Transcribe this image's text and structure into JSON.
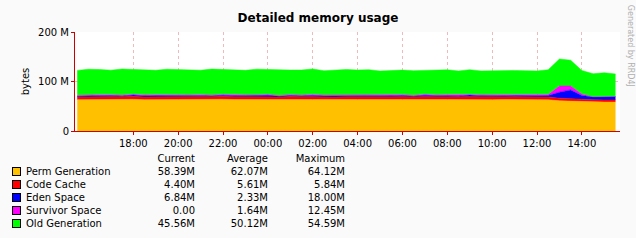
{
  "chart_data": {
    "type": "area",
    "title": "Detailed memory usage",
    "y_label": "bytes",
    "annotations": [
      "Generated by RRD4J"
    ],
    "stacked": true,
    "grid": true,
    "x": [
      15.5,
      16,
      16.5,
      17,
      17.5,
      18,
      18.5,
      19,
      19.5,
      20,
      20.5,
      21,
      21.5,
      22,
      22.5,
      23,
      23.5,
      24,
      24.5,
      25,
      25.5,
      26,
      26.5,
      27,
      27.5,
      28,
      28.5,
      29,
      29.5,
      30,
      30.5,
      31,
      31.5,
      32,
      32.5,
      33,
      33.5,
      34,
      34.5,
      35,
      35.5,
      36,
      36.5,
      37,
      37.5,
      38,
      38.5,
      39,
      39.5
    ],
    "xlim": [
      15.4,
      39.7
    ],
    "xticks": [
      {
        "value": 18,
        "label": "18:00"
      },
      {
        "value": 20,
        "label": "20:00"
      },
      {
        "value": 22,
        "label": "22:00"
      },
      {
        "value": 24,
        "label": "00:00"
      },
      {
        "value": 26,
        "label": "02:00"
      },
      {
        "value": 28,
        "label": "04:00"
      },
      {
        "value": 30,
        "label": "06:00"
      },
      {
        "value": 32,
        "label": "08:00"
      },
      {
        "value": 34,
        "label": "10:00"
      },
      {
        "value": 36,
        "label": "12:00"
      },
      {
        "value": 38,
        "label": "14:00"
      }
    ],
    "ylim": [
      0,
      200
    ],
    "yticks": [
      0,
      {
        "value": 100,
        "label": "100 M"
      },
      {
        "value": 200,
        "label": "200 M"
      }
    ],
    "stats_columns": [
      "Current",
      "Average",
      "Maximum"
    ],
    "series": [
      {
        "name": "Perm Generation",
        "color": "#ffc000",
        "stats": [
          "58.39M",
          "62.07M",
          "64.12M"
        ],
        "values": [
          63.2,
          63.5,
          63.8,
          63.4,
          63.6,
          64.0,
          63.3,
          63.5,
          63.9,
          63.2,
          63.6,
          63.4,
          63.8,
          64.1,
          63.5,
          63.3,
          63.7,
          63.6,
          63.2,
          63.9,
          63.4,
          63.5,
          63.8,
          63.1,
          63.6,
          63.4,
          63.9,
          63.3,
          63.5,
          63.7,
          63.2,
          63.8,
          63.4,
          63.6,
          63.3,
          63.9,
          63.5,
          63.2,
          63.7,
          63.4,
          63.6,
          63.3,
          63.0,
          61.0,
          60.0,
          59.0,
          58.5,
          58.4,
          58.39
        ]
      },
      {
        "name": "Code Cache",
        "color": "#ff0000",
        "stats": [
          "4.40M",
          "5.61M",
          "5.84M"
        ],
        "values": [
          5.6,
          5.7,
          5.6,
          5.5,
          5.6,
          5.8,
          5.6,
          5.7,
          5.6,
          5.5,
          5.6,
          5.7,
          5.6,
          5.6,
          5.8,
          5.6,
          5.5,
          5.7,
          5.6,
          5.6,
          5.7,
          5.6,
          5.5,
          5.6,
          5.8,
          5.6,
          5.7,
          5.6,
          5.6,
          5.5,
          5.6,
          5.7,
          5.8,
          5.6,
          5.6,
          5.7,
          5.6,
          5.5,
          5.6,
          5.7,
          5.6,
          5.6,
          5.5,
          5.4,
          5.0,
          4.6,
          4.4,
          4.4,
          4.4
        ]
      },
      {
        "name": "Eden Space",
        "color": "#0000ff",
        "stats": [
          "6.84M",
          "2.33M",
          "18.00M"
        ],
        "values": [
          1.5,
          2.2,
          1.8,
          2.6,
          1.2,
          2.9,
          1.7,
          2.3,
          1.4,
          2.8,
          1.9,
          2.1,
          1.3,
          2.7,
          1.6,
          2.4,
          1.8,
          2.9,
          1.2,
          2.2,
          1.7,
          2.6,
          1.4,
          2.3,
          1.9,
          2.8,
          1.5,
          2.1,
          1.6,
          2.5,
          1.3,
          2.7,
          1.8,
          2.2,
          1.5,
          2.9,
          1.7,
          2.4,
          1.2,
          2.6,
          1.9,
          2.3,
          3.0,
          12.0,
          18.0,
          8.0,
          6.0,
          6.5,
          6.84
        ]
      },
      {
        "name": "Survivor Space",
        "color": "#ff00ff",
        "stats": [
          "0.00",
          "1.64M",
          "12.45M"
        ],
        "values": [
          1.6,
          1.4,
          1.8,
          1.5,
          1.7,
          1.3,
          1.9,
          1.6,
          1.5,
          1.7,
          1.4,
          1.8,
          1.6,
          1.5,
          1.7,
          1.3,
          1.8,
          1.6,
          1.4,
          1.7,
          1.5,
          1.9,
          1.6,
          1.4,
          1.7,
          1.5,
          1.8,
          1.3,
          1.6,
          1.7,
          1.4,
          1.8,
          1.5,
          1.6,
          1.7,
          1.3,
          1.9,
          1.6,
          1.5,
          1.7,
          1.4,
          1.6,
          2.0,
          12.45,
          8.0,
          3.0,
          0,
          0,
          0
        ]
      },
      {
        "name": "Old Generation",
        "color": "#00ff00",
        "stats": [
          "45.56M",
          "50.12M",
          "54.59M"
        ],
        "values": [
          50.5,
          52.0,
          51.2,
          49.8,
          53.1,
          50.7,
          51.9,
          49.5,
          52.4,
          50.9,
          51.6,
          49.7,
          52.8,
          50.3,
          51.4,
          49.9,
          52.2,
          50.6,
          51.1,
          49.6,
          50.8,
          51.7,
          49.4,
          50.2,
          51.3,
          49.8,
          50.9,
          48.9,
          50.1,
          49.6,
          50.4,
          48.8,
          49.9,
          50.6,
          49.2,
          50.0,
          48.7,
          49.5,
          50.3,
          48.9,
          49.4,
          48.6,
          50.2,
          54.59,
          52.0,
          47.5,
          46.8,
          48.2,
          45.56
        ]
      }
    ]
  }
}
